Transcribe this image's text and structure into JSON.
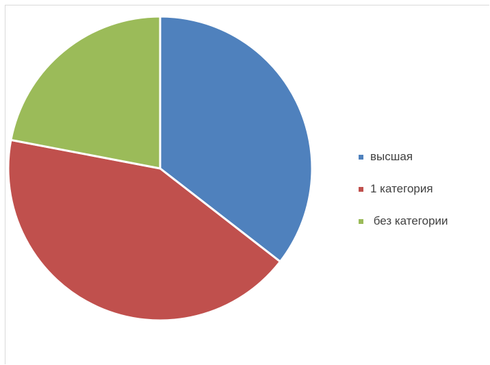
{
  "chart_data": {
    "type": "pie",
    "title": "",
    "categories": [
      "высшая",
      "1 категория",
      " без категории"
    ],
    "values": [
      35.5,
      42.5,
      22.0
    ],
    "colors": [
      "#4f81bd",
      "#c0504d",
      "#9bbb59"
    ],
    "start_angle_deg": 0,
    "direction": "clockwise",
    "legend_position": "right"
  }
}
